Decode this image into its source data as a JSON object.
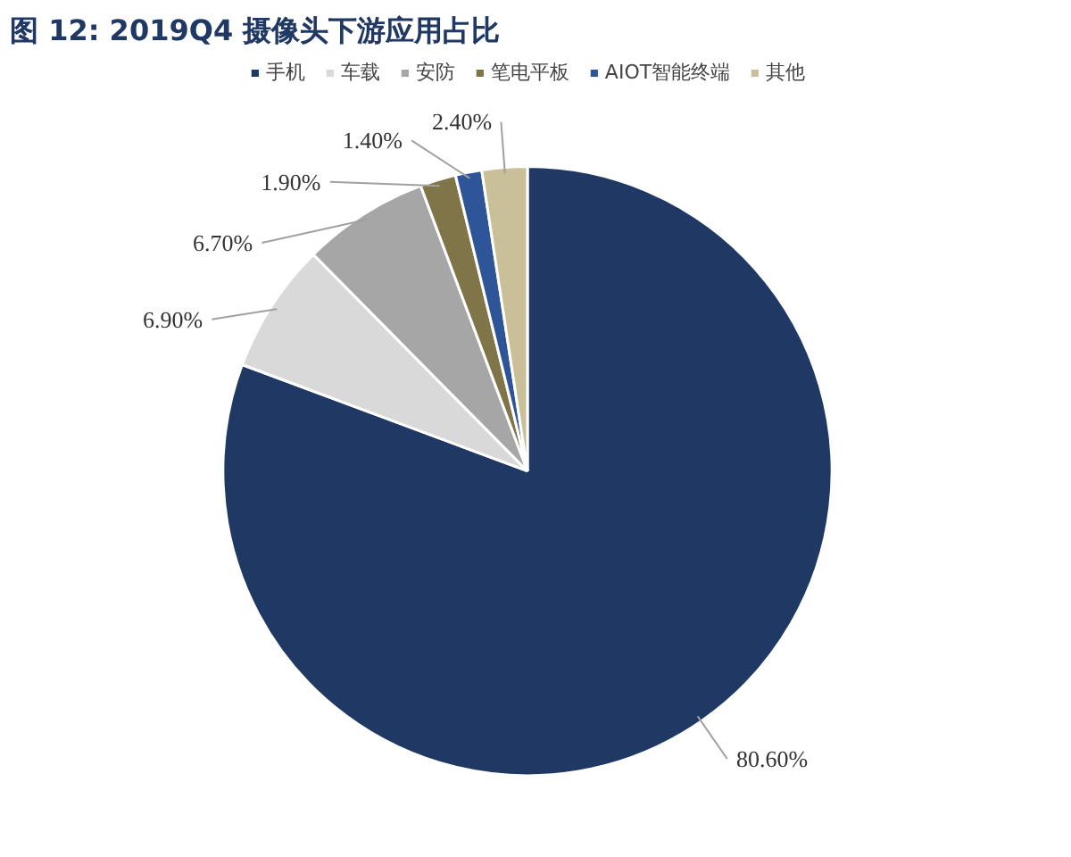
{
  "chart_data": {
    "type": "pie",
    "title": "图 12: 2019Q4 摄像头下游应用占比",
    "categories": [
      "手机",
      "车载",
      "安防",
      "笔电平板",
      "AIOT智能终端",
      "其他"
    ],
    "values": [
      80.6,
      6.9,
      6.7,
      1.9,
      1.4,
      2.4
    ],
    "colors": [
      "#1f3864",
      "#d9d9d9",
      "#a6a6a6",
      "#7f7549",
      "#2e5597",
      "#c9c09a"
    ],
    "value_labels": [
      "80.60%",
      "6.90%",
      "6.70%",
      "1.90%",
      "1.40%",
      "2.40%"
    ],
    "legend": "top"
  }
}
